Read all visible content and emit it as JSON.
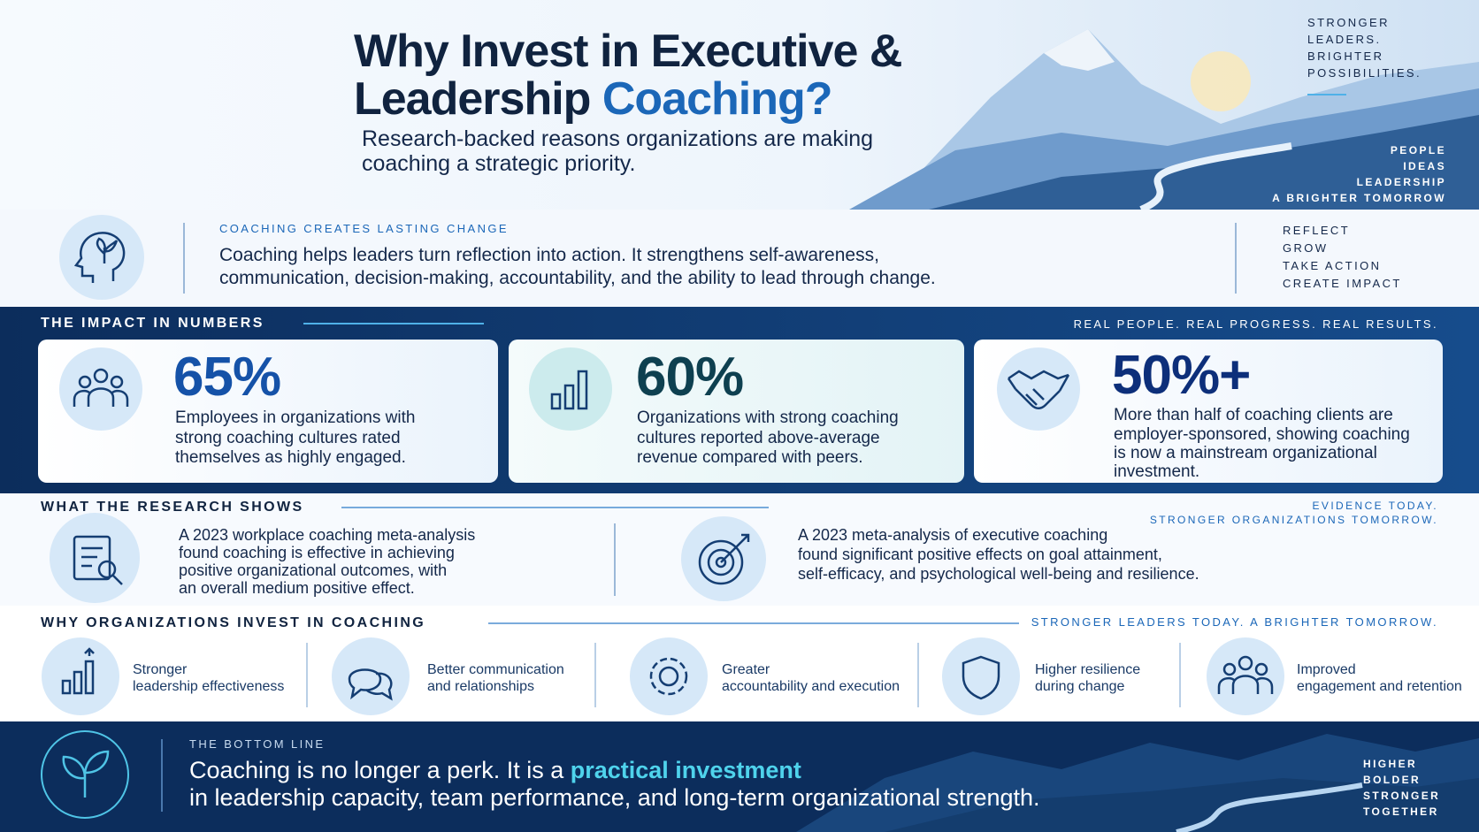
{
  "header": {
    "title_line1": "Why Invest in Executive &",
    "title_line2": "Leadership",
    "title_highlight": "Coaching?",
    "subtitle_lines": [
      "Research-backed reasons organizations are making",
      "coaching a strategic priority."
    ],
    "tagline": [
      "STRONGER",
      "LEADERS.",
      "BRIGHTER",
      "POSSIBILITIES."
    ],
    "keywords": [
      "PEOPLE",
      "IDEAS",
      "LEADERSHIP",
      "A BRIGHTER TOMORROW"
    ]
  },
  "intro": {
    "label": "COACHING CREATES LASTING CHANGE",
    "body_lines": [
      "Coaching helps leaders turn reflection into action. It strengthens self-awareness,",
      "communication, decision-making, accountability, and the ability to lead through change."
    ],
    "steps": [
      "REFLECT",
      "GROW",
      "TAKE ACTION",
      "CREATE IMPACT"
    ]
  },
  "impact": {
    "heading": "THE IMPACT IN NUMBERS",
    "tagline": "REAL PEOPLE. REAL PROGRESS. REAL RESULTS.",
    "stats": [
      {
        "value": "65%",
        "description_lines": [
          "Employees in organizations with",
          "strong coaching cultures rated",
          "themselves as highly engaged."
        ]
      },
      {
        "value": "60%",
        "description_lines": [
          "Organizations with strong coaching",
          "cultures reported above-average",
          "revenue compared with peers."
        ]
      },
      {
        "value": "50%+",
        "description_lines": [
          "More than half of coaching clients are",
          "employer-sponsored, showing coaching",
          "is now a mainstream organizational",
          "investment."
        ]
      }
    ]
  },
  "research": {
    "heading": "WHAT THE RESEARCH SHOWS",
    "tagline": [
      "EVIDENCE TODAY.",
      "STRONGER ORGANIZATIONS TOMORROW."
    ],
    "findings": [
      {
        "lines": [
          "A 2023 workplace coaching meta-analysis",
          "found coaching is effective in achieving",
          "positive organizational outcomes, with",
          "an overall medium positive effect."
        ]
      },
      {
        "lines": [
          "A 2023 meta-analysis of executive coaching",
          "found significant positive effects on goal attainment,",
          "self-efficacy, and psychological well-being and resilience."
        ]
      }
    ]
  },
  "reasons": {
    "heading": "WHY ORGANIZATIONS INVEST IN COACHING",
    "tagline": "STRONGER LEADERS TODAY. A BRIGHTER TOMORROW.",
    "items": [
      {
        "lines": [
          "Stronger",
          "leadership effectiveness"
        ]
      },
      {
        "lines": [
          "Better communication",
          "and relationships"
        ]
      },
      {
        "lines": [
          "Greater",
          "accountability and execution"
        ]
      },
      {
        "lines": [
          "Higher resilience",
          "during change"
        ]
      },
      {
        "lines": [
          "Improved",
          "engagement and retention"
        ]
      }
    ]
  },
  "bottom_line": {
    "label": "THE BOTTOM LINE",
    "line1": "Coaching is no longer a perk. It is a",
    "line1_highlight": "practical investment",
    "line2": "in leadership capacity, team performance, and long-term organizational strength.",
    "closing": [
      "HIGHER",
      "BOLDER",
      "STRONGER",
      "TOGETHER"
    ]
  }
}
